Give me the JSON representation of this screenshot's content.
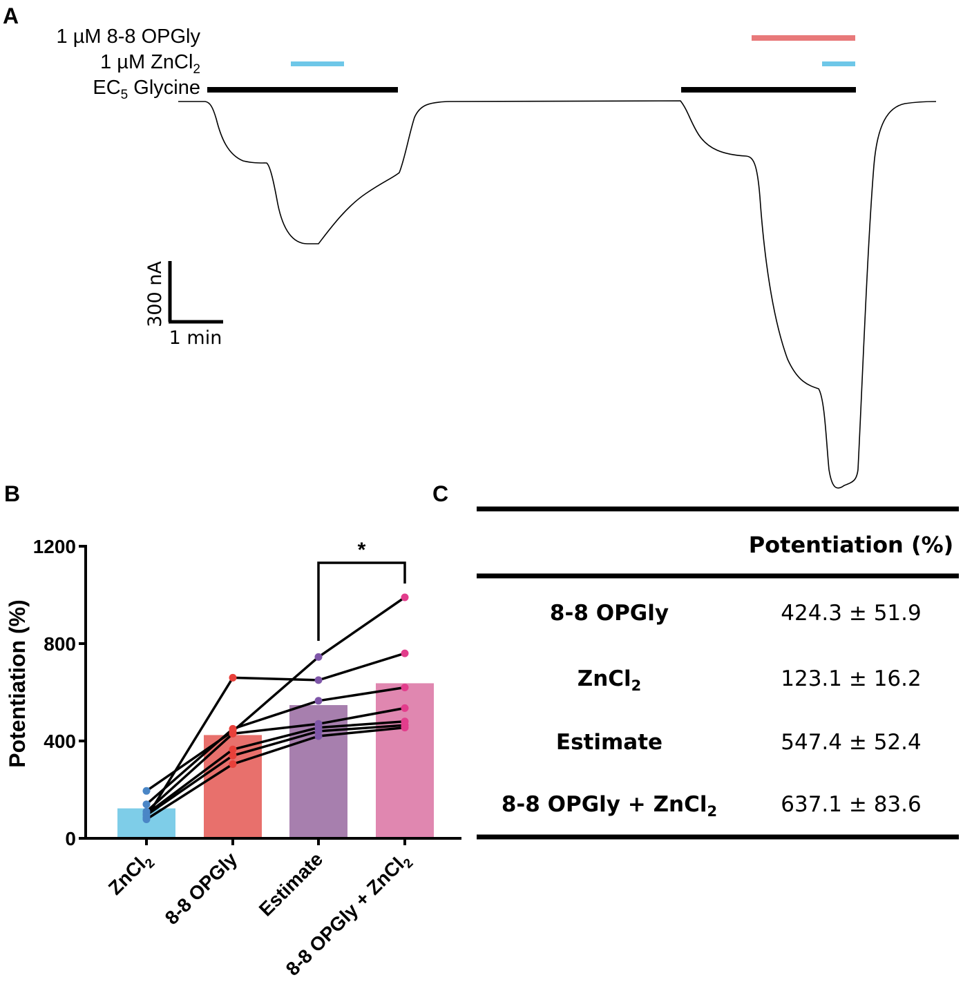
{
  "panel_labels": {
    "a": "A",
    "b": "B",
    "c": "C"
  },
  "colors": {
    "zncl2": "#7ecde8",
    "opgly": "#e8706c",
    "estimate": "#a77fae",
    "combo": "#e087b0",
    "zncl2_dot": "#4a86c6",
    "opgly_dot": "#e8403a",
    "estimate_dot": "#7e56a8",
    "combo_dot": "#e23d8c",
    "opgly_bar": "#e8797a",
    "zncl2_app_bar": "#6ec7e8",
    "line": "#000000"
  },
  "trace_panel": {
    "labels": {
      "opgly": {
        "main": "1 µM 8-8 OPGly"
      },
      "zncl2": {
        "main": "1 µM ZnCl",
        "sub": "2"
      },
      "glycine": {
        "main": "EC",
        "sub": "5",
        "rest": " Glycine"
      }
    },
    "scale_bar": {
      "y_label": "300 nA",
      "x_label": "1 min"
    }
  },
  "chart_data": {
    "type": "bar",
    "ylabel": "Potentiation (%)",
    "ylim": [
      0,
      1200
    ],
    "yticks": [
      0,
      400,
      800,
      1200
    ],
    "categories": [
      "ZnCl₂",
      "8-8 OPGly",
      "Estimate",
      "8-8 OPGly + ZnCl₂"
    ],
    "category_labels": [
      {
        "main": "ZnCl",
        "sub": "2",
        "rest": ""
      },
      {
        "main": "8-8 OPGly",
        "sub": "",
        "rest": ""
      },
      {
        "main": "Estimate",
        "sub": "",
        "rest": ""
      },
      {
        "main": "8-8 OPGly + ZnCl",
        "sub": "2",
        "rest": ""
      }
    ],
    "means": [
      123.1,
      424.3,
      547.4,
      637.1
    ],
    "paired_cells": [
      [
        195,
        440,
        745,
        990
      ],
      [
        85,
        660,
        650,
        760
      ],
      [
        140,
        450,
        565,
        620
      ],
      [
        110,
        430,
        470,
        535
      ],
      [
        100,
        365,
        455,
        480
      ],
      [
        95,
        340,
        440,
        465
      ],
      [
        78,
        305,
        420,
        455
      ]
    ],
    "significance": {
      "between": [
        2,
        3
      ],
      "label": "*"
    }
  },
  "table": {
    "header": "Potentiation (%)",
    "rows": [
      {
        "label": {
          "main": "8-8 OPGly",
          "sub": "",
          "rest": ""
        },
        "value": "424.3 ± 51.9"
      },
      {
        "label": {
          "main": "ZnCl",
          "sub": "2",
          "rest": ""
        },
        "value": "123.1 ± 16.2"
      },
      {
        "label": {
          "main": "Estimate",
          "sub": "",
          "rest": ""
        },
        "value": "547.4 ± 52.4"
      },
      {
        "label": {
          "main": "8-8 OPGly + ZnCl",
          "sub": "2",
          "rest": ""
        },
        "value": "637.1 ± 83.6"
      }
    ]
  }
}
